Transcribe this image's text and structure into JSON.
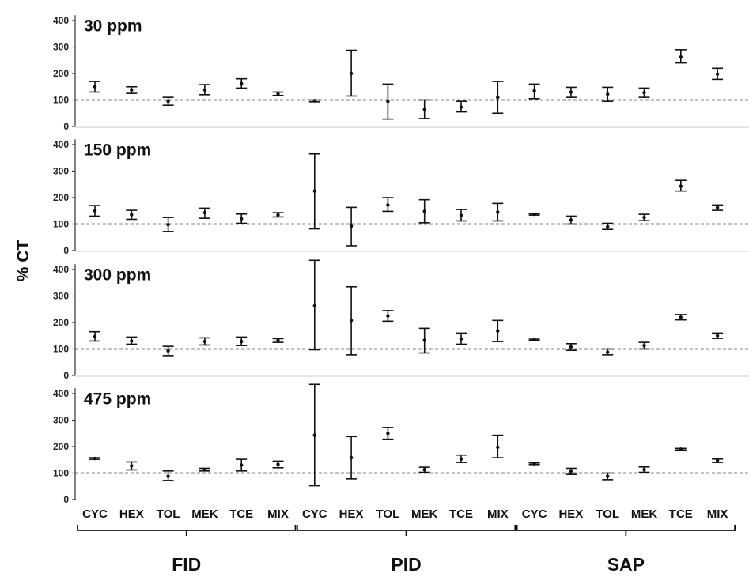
{
  "chart_data": {
    "type": "scatter",
    "ylabel": "% CT",
    "yticks": [
      "0",
      "100",
      "200",
      "300",
      "400"
    ],
    "ylim": [
      0,
      420
    ],
    "reference_line": 100,
    "categories": [
      "CYC",
      "HEX",
      "TOL",
      "MEK",
      "TCE",
      "MIX"
    ],
    "groups": [
      "FID",
      "PID",
      "SAP"
    ],
    "panels": [
      {
        "title": "30 ppm",
        "FID": [
          {
            "mean": 150,
            "low": 130,
            "high": 170
          },
          {
            "mean": 138,
            "low": 125,
            "high": 150
          },
          {
            "mean": 95,
            "low": 80,
            "high": 110
          },
          {
            "mean": 138,
            "low": 120,
            "high": 158
          },
          {
            "mean": 162,
            "low": 145,
            "high": 180
          },
          {
            "mean": 123,
            "low": 117,
            "high": 130
          }
        ],
        "PID": [
          {
            "mean": 97,
            "low": 93,
            "high": 100
          },
          {
            "mean": 200,
            "low": 115,
            "high": 288
          },
          {
            "mean": 95,
            "low": 28,
            "high": 160
          },
          {
            "mean": 65,
            "low": 30,
            "high": 100
          },
          {
            "mean": 73,
            "low": 55,
            "high": 95
          },
          {
            "mean": 110,
            "low": 50,
            "high": 170
          }
        ],
        "SAP": [
          {
            "mean": 135,
            "low": 105,
            "high": 160
          },
          {
            "mean": 130,
            "low": 110,
            "high": 148
          },
          {
            "mean": 122,
            "low": 95,
            "high": 148
          },
          {
            "mean": 128,
            "low": 110,
            "high": 145
          },
          {
            "mean": 262,
            "low": 240,
            "high": 290
          },
          {
            "mean": 198,
            "low": 178,
            "high": 220
          }
        ]
      },
      {
        "title": "150 ppm",
        "FID": [
          {
            "mean": 150,
            "low": 130,
            "high": 170
          },
          {
            "mean": 135,
            "low": 118,
            "high": 152
          },
          {
            "mean": 98,
            "low": 72,
            "high": 125
          },
          {
            "mean": 143,
            "low": 122,
            "high": 160
          },
          {
            "mean": 120,
            "low": 103,
            "high": 138
          },
          {
            "mean": 135,
            "low": 127,
            "high": 143
          }
        ],
        "PID": [
          {
            "mean": 225,
            "low": 82,
            "high": 365
          },
          {
            "mean": 92,
            "low": 18,
            "high": 163
          },
          {
            "mean": 172,
            "low": 148,
            "high": 200
          },
          {
            "mean": 148,
            "low": 105,
            "high": 192
          },
          {
            "mean": 133,
            "low": 112,
            "high": 155
          },
          {
            "mean": 145,
            "low": 112,
            "high": 178
          }
        ],
        "SAP": [
          {
            "mean": 137,
            "low": 134,
            "high": 139
          },
          {
            "mean": 115,
            "low": 100,
            "high": 130
          },
          {
            "mean": 90,
            "low": 80,
            "high": 103
          },
          {
            "mean": 125,
            "low": 113,
            "high": 137
          },
          {
            "mean": 243,
            "low": 225,
            "high": 265
          },
          {
            "mean": 162,
            "low": 152,
            "high": 172
          }
        ]
      },
      {
        "title": "300 ppm",
        "FID": [
          {
            "mean": 147,
            "low": 130,
            "high": 165
          },
          {
            "mean": 130,
            "low": 118,
            "high": 145
          },
          {
            "mean": 93,
            "low": 75,
            "high": 110
          },
          {
            "mean": 128,
            "low": 115,
            "high": 142
          },
          {
            "mean": 128,
            "low": 113,
            "high": 145
          },
          {
            "mean": 132,
            "low": 125,
            "high": 139
          }
        ],
        "PID": [
          {
            "mean": 263,
            "low": 97,
            "high": 435
          },
          {
            "mean": 208,
            "low": 78,
            "high": 335
          },
          {
            "mean": 225,
            "low": 205,
            "high": 245
          },
          {
            "mean": 133,
            "low": 85,
            "high": 178
          },
          {
            "mean": 138,
            "low": 118,
            "high": 160
          },
          {
            "mean": 168,
            "low": 128,
            "high": 208
          }
        ],
        "SAP": [
          {
            "mean": 135,
            "low": 132,
            "high": 137
          },
          {
            "mean": 108,
            "low": 95,
            "high": 120
          },
          {
            "mean": 88,
            "low": 78,
            "high": 100
          },
          {
            "mean": 113,
            "low": 100,
            "high": 125
          },
          {
            "mean": 220,
            "low": 210,
            "high": 230
          },
          {
            "mean": 150,
            "low": 140,
            "high": 160
          }
        ]
      },
      {
        "title": "475 ppm",
        "FID": [
          {
            "mean": 155,
            "low": 152,
            "high": 158
          },
          {
            "mean": 127,
            "low": 112,
            "high": 142
          },
          {
            "mean": 88,
            "low": 72,
            "high": 108
          },
          {
            "mean": 113,
            "low": 108,
            "high": 118
          },
          {
            "mean": 130,
            "low": 108,
            "high": 152
          },
          {
            "mean": 133,
            "low": 120,
            "high": 145
          }
        ],
        "PID": [
          {
            "mean": 243,
            "low": 52,
            "high": 435
          },
          {
            "mean": 158,
            "low": 78,
            "high": 238
          },
          {
            "mean": 250,
            "low": 228,
            "high": 272
          },
          {
            "mean": 113,
            "low": 103,
            "high": 122
          },
          {
            "mean": 153,
            "low": 140,
            "high": 168
          },
          {
            "mean": 197,
            "low": 158,
            "high": 243
          }
        ],
        "SAP": [
          {
            "mean": 135,
            "low": 132,
            "high": 138
          },
          {
            "mean": 107,
            "low": 95,
            "high": 118
          },
          {
            "mean": 88,
            "low": 75,
            "high": 100
          },
          {
            "mean": 113,
            "low": 103,
            "high": 123
          },
          {
            "mean": 190,
            "low": 187,
            "high": 193
          },
          {
            "mean": 147,
            "low": 140,
            "high": 153
          }
        ]
      }
    ]
  }
}
